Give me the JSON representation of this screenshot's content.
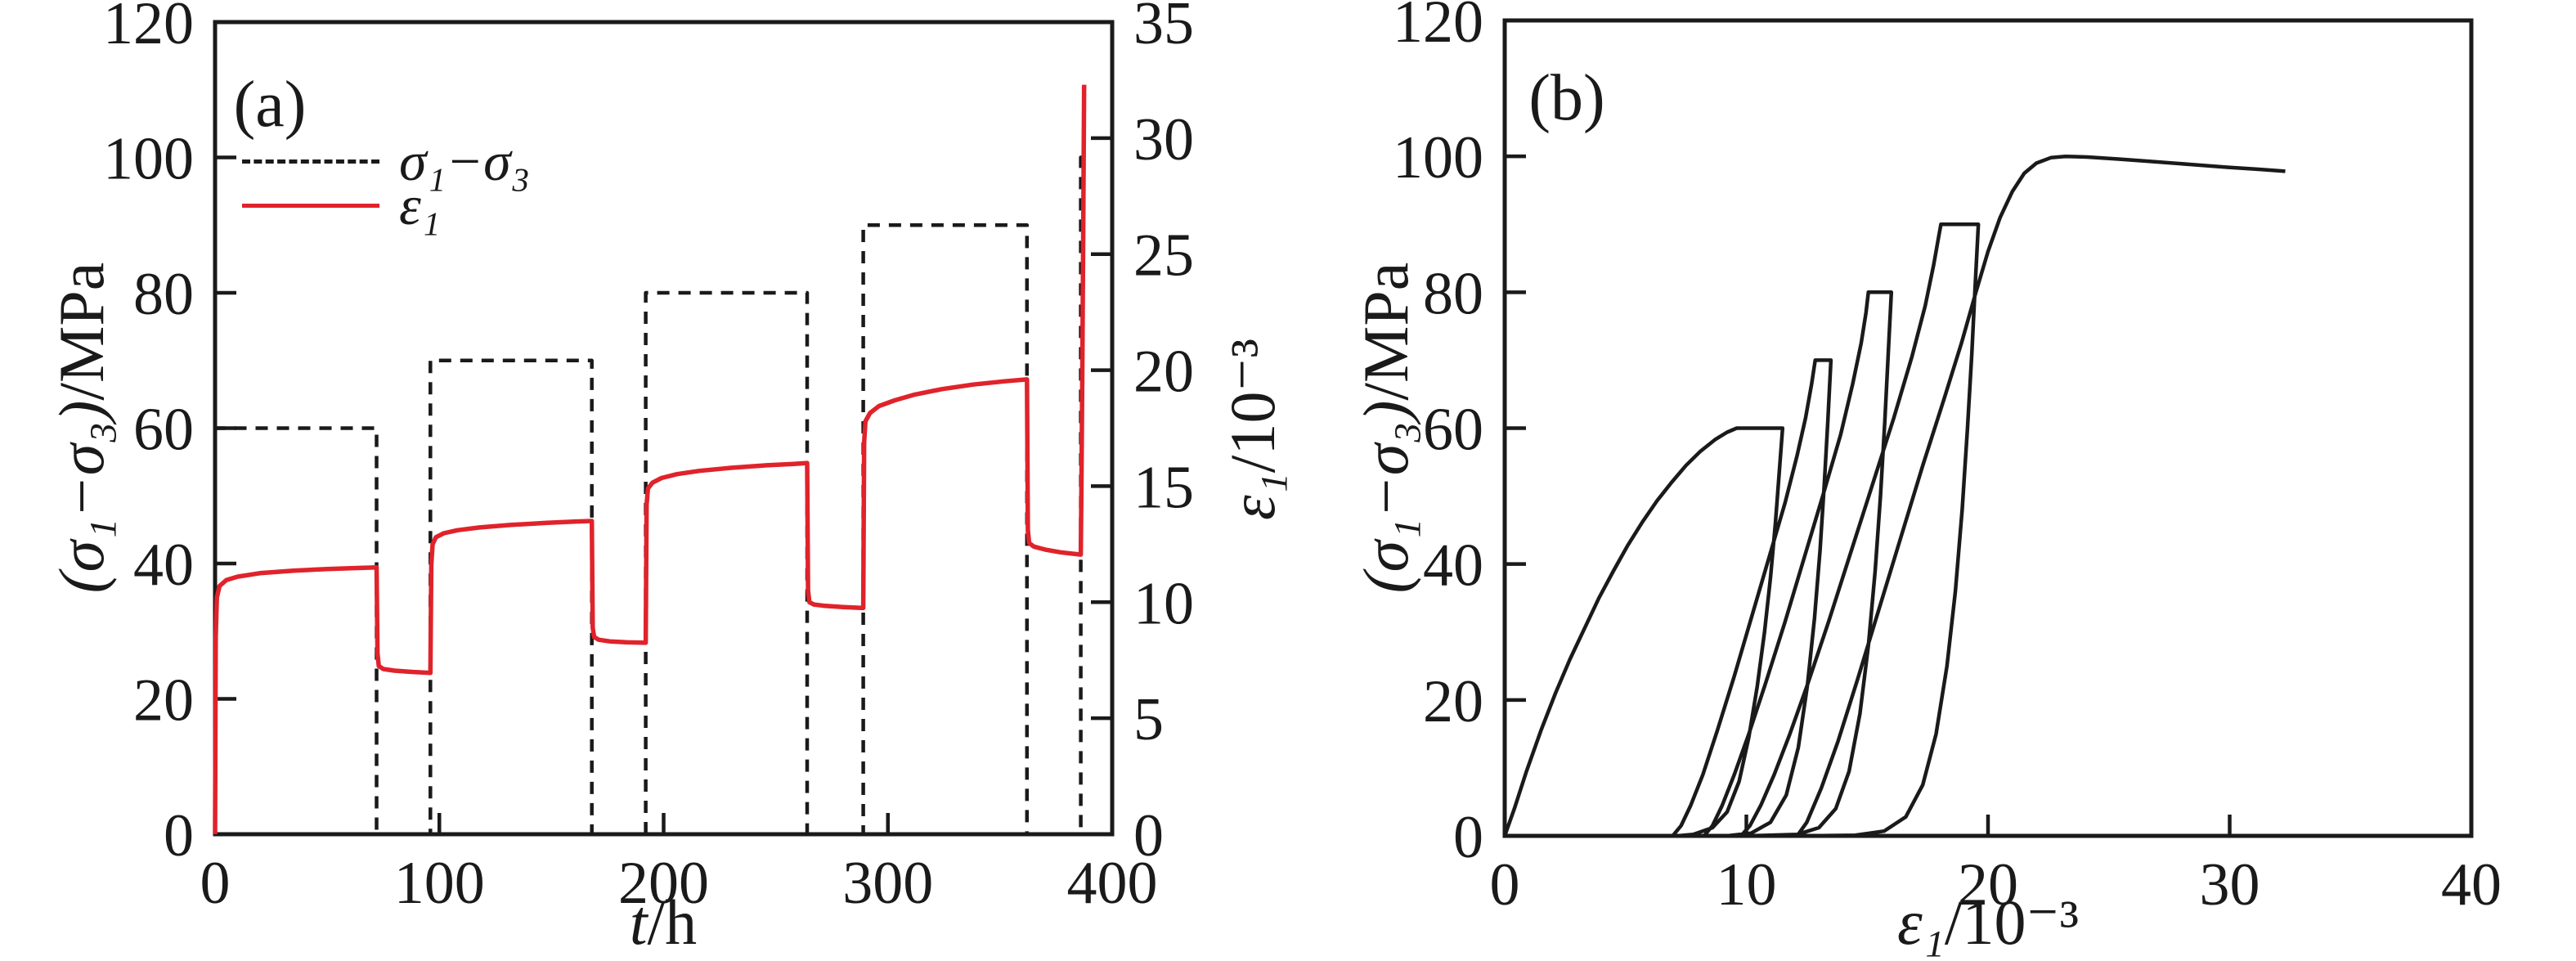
{
  "figure": {
    "background": "#ffffff",
    "axis_color": "#1a1a1a",
    "stress_color": "#1a1a1a",
    "strain_color": "#e0232b"
  },
  "chart_data": [
    {
      "type": "line",
      "id": "a",
      "label": "(a)",
      "x": {
        "label_sym": "t",
        "label_unit": "/h",
        "min": 0,
        "max": 400,
        "ticks": [
          0,
          100,
          200,
          300,
          400
        ]
      },
      "y_left": {
        "label_sym": "(σ₁−σ₃)",
        "label_unit": "/MPa",
        "min": 0,
        "max": 120,
        "ticks": [
          0,
          20,
          40,
          60,
          80,
          100,
          120
        ]
      },
      "y_right": {
        "label_sym": "ε₁",
        "label_unit": "/10⁻³",
        "min": 0,
        "max": 35,
        "ticks": [
          0,
          5,
          10,
          15,
          20,
          25,
          30,
          35
        ]
      },
      "legend": [
        {
          "label": "σ₁−σ₃",
          "line": "dashed",
          "color": "#1a1a1a"
        },
        {
          "label": "ε₁",
          "line": "solid",
          "color": "#e0232b"
        }
      ],
      "series": [
        {
          "name": "deviatoric-stress",
          "yaxis": "left",
          "line": "dashed",
          "color": "#1a1a1a",
          "points": [
            [
              0,
              0
            ],
            [
              0,
              60
            ],
            [
              72,
              60
            ],
            [
              72,
              0
            ],
            [
              96,
              0
            ],
            [
              96,
              70
            ],
            [
              168,
              70
            ],
            [
              168,
              0
            ],
            [
              192,
              0
            ],
            [
              192,
              80
            ],
            [
              264,
              80
            ],
            [
              264,
              0
            ],
            [
              289,
              0
            ],
            [
              289,
              90
            ],
            [
              362,
              90
            ],
            [
              362,
              0
            ],
            [
              386,
              0
            ],
            [
              386,
              100
            ],
            [
              387.5,
              100
            ]
          ]
        },
        {
          "name": "axial-strain",
          "yaxis": "right",
          "line": "solid",
          "color": "#e0232b",
          "points": [
            [
              0,
              0
            ],
            [
              0.3,
              8.5
            ],
            [
              0.8,
              10.2
            ],
            [
              2,
              10.7
            ],
            [
              5,
              10.95
            ],
            [
              10,
              11.1
            ],
            [
              20,
              11.25
            ],
            [
              35,
              11.36
            ],
            [
              50,
              11.43
            ],
            [
              62,
              11.47
            ],
            [
              72,
              11.5
            ],
            [
              72.4,
              7.8
            ],
            [
              73,
              7.25
            ],
            [
              75,
              7.12
            ],
            [
              80,
              7.05
            ],
            [
              87,
              7.0
            ],
            [
              96,
              6.95
            ],
            [
              96.4,
              11.6
            ],
            [
              97,
              12.5
            ],
            [
              98.5,
              12.8
            ],
            [
              102,
              12.97
            ],
            [
              108,
              13.1
            ],
            [
              118,
              13.22
            ],
            [
              132,
              13.33
            ],
            [
              148,
              13.42
            ],
            [
              160,
              13.47
            ],
            [
              168,
              13.5
            ],
            [
              168.4,
              8.9
            ],
            [
              169,
              8.5
            ],
            [
              171,
              8.38
            ],
            [
              176,
              8.31
            ],
            [
              184,
              8.27
            ],
            [
              192,
              8.25
            ],
            [
              192.4,
              14.2
            ],
            [
              193,
              14.9
            ],
            [
              195,
              15.15
            ],
            [
              199,
              15.35
            ],
            [
              206,
              15.52
            ],
            [
              216,
              15.66
            ],
            [
              230,
              15.79
            ],
            [
              246,
              15.9
            ],
            [
              258,
              15.96
            ],
            [
              264,
              16.0
            ],
            [
              264.4,
              10.5
            ],
            [
              265,
              10.0
            ],
            [
              267,
              9.9
            ],
            [
              272,
              9.84
            ],
            [
              280,
              9.79
            ],
            [
              289,
              9.75
            ],
            [
              289.4,
              16.9
            ],
            [
              290,
              17.8
            ],
            [
              292,
              18.15
            ],
            [
              296,
              18.45
            ],
            [
              303,
              18.7
            ],
            [
              312,
              18.95
            ],
            [
              324,
              19.18
            ],
            [
              338,
              19.38
            ],
            [
              352,
              19.52
            ],
            [
              362,
              19.6
            ],
            [
              362.4,
              13.1
            ],
            [
              363,
              12.55
            ],
            [
              365,
              12.4
            ],
            [
              370,
              12.27
            ],
            [
              377,
              12.15
            ],
            [
              386,
              12.05
            ],
            [
              386.3,
              15
            ],
            [
              386.7,
              20
            ],
            [
              387.1,
              26
            ],
            [
              387.5,
              32.3
            ]
          ]
        }
      ]
    },
    {
      "type": "line",
      "id": "b",
      "label": "(b)",
      "x": {
        "label_sym": "ε₁",
        "label_unit": "/10⁻³",
        "min": 0,
        "max": 40,
        "ticks": [
          0,
          10,
          20,
          30,
          40
        ]
      },
      "y_left": {
        "label_sym": "(σ₁−σ₃)",
        "label_unit": "/MPa",
        "min": 0,
        "max": 120,
        "ticks": [
          0,
          20,
          40,
          60,
          80,
          100,
          120
        ]
      },
      "legend": [],
      "series": [
        {
          "name": "stress-strain-curve",
          "yaxis": "left",
          "line": "solid",
          "color": "#1a1a1a",
          "points": [
            [
              0,
              0
            ],
            [
              0.4,
              4
            ],
            [
              0.9,
              9.5
            ],
            [
              1.5,
              15.5
            ],
            [
              2.1,
              21
            ],
            [
              2.7,
              26
            ],
            [
              3.3,
              30.5
            ],
            [
              3.9,
              35
            ],
            [
              4.5,
              39
            ],
            [
              5.1,
              42.8
            ],
            [
              5.7,
              46.2
            ],
            [
              6.3,
              49.3
            ],
            [
              6.9,
              52
            ],
            [
              7.5,
              54.5
            ],
            [
              8.1,
              56.6
            ],
            [
              8.7,
              58.3
            ],
            [
              9.2,
              59.4
            ],
            [
              9.6,
              60
            ],
            [
              11.5,
              60
            ],
            [
              11.35,
              53
            ],
            [
              11.2,
              46
            ],
            [
              11.0,
              38
            ],
            [
              10.75,
              30
            ],
            [
              10.45,
              22
            ],
            [
              10.1,
              14.5
            ],
            [
              9.7,
              8
            ],
            [
              9.2,
              3.5
            ],
            [
              8.6,
              1.2
            ],
            [
              7.8,
              0.2
            ],
            [
              7.15,
              0
            ],
            [
              6.95,
              0
            ],
            [
              7.3,
              1.5
            ],
            [
              7.7,
              4.5
            ],
            [
              8.2,
              9
            ],
            [
              8.8,
              15.5
            ],
            [
              9.5,
              23.5
            ],
            [
              10.2,
              32
            ],
            [
              10.9,
              40.5
            ],
            [
              11.6,
              49
            ],
            [
              12.1,
              56
            ],
            [
              12.45,
              61.5
            ],
            [
              12.7,
              66.5
            ],
            [
              12.85,
              70
            ],
            [
              13.5,
              70
            ],
            [
              13.37,
              61
            ],
            [
              13.23,
              52
            ],
            [
              13.05,
              42
            ],
            [
              12.82,
              32
            ],
            [
              12.52,
              22
            ],
            [
              12.15,
              13
            ],
            [
              11.65,
              6
            ],
            [
              11.0,
              2
            ],
            [
              10.2,
              0.4
            ],
            [
              9.3,
              0.05
            ],
            [
              8.45,
              0
            ],
            [
              8.25,
              0
            ],
            [
              8.6,
              1.5
            ],
            [
              9.0,
              4.5
            ],
            [
              9.5,
              9
            ],
            [
              10.1,
              15
            ],
            [
              10.8,
              22.5
            ],
            [
              11.6,
              31.5
            ],
            [
              12.4,
              41
            ],
            [
              13.2,
              50.5
            ],
            [
              13.9,
              59
            ],
            [
              14.4,
              66.5
            ],
            [
              14.75,
              72.5
            ],
            [
              14.95,
              77
            ],
            [
              15.05,
              80
            ],
            [
              16.0,
              80
            ],
            [
              15.87,
              71
            ],
            [
              15.73,
              61
            ],
            [
              15.55,
              50
            ],
            [
              15.33,
              39
            ],
            [
              15.05,
              28
            ],
            [
              14.7,
              18
            ],
            [
              14.25,
              9.5
            ],
            [
              13.7,
              4
            ],
            [
              13.0,
              1.2
            ],
            [
              12.1,
              0.2
            ],
            [
              10.3,
              0.02
            ],
            [
              9.85,
              0
            ],
            [
              9.78,
              0
            ],
            [
              10.15,
              1.5
            ],
            [
              10.6,
              4.5
            ],
            [
              11.15,
              9
            ],
            [
              11.8,
              15
            ],
            [
              12.55,
              22.5
            ],
            [
              13.4,
              31.5
            ],
            [
              14.3,
              41.5
            ],
            [
              15.2,
              51.5
            ],
            [
              16.1,
              61.5
            ],
            [
              16.85,
              70.5
            ],
            [
              17.4,
              78
            ],
            [
              17.75,
              84
            ],
            [
              17.95,
              88
            ],
            [
              18.05,
              90
            ],
            [
              19.6,
              90
            ],
            [
              19.47,
              81
            ],
            [
              19.33,
              71
            ],
            [
              19.15,
              60
            ],
            [
              18.93,
              48
            ],
            [
              18.65,
              36
            ],
            [
              18.3,
              25
            ],
            [
              17.85,
              15
            ],
            [
              17.3,
              7.5
            ],
            [
              16.6,
              2.8
            ],
            [
              15.7,
              0.7
            ],
            [
              14.5,
              0.1
            ],
            [
              12.4,
              0
            ],
            [
              12.1,
              0
            ],
            [
              12.5,
              2
            ],
            [
              13.1,
              7
            ],
            [
              13.8,
              14
            ],
            [
              14.6,
              23
            ],
            [
              15.5,
              33.5
            ],
            [
              16.4,
              44
            ],
            [
              17.3,
              54.5
            ],
            [
              18.2,
              64.5
            ],
            [
              18.9,
              72.5
            ],
            [
              19.5,
              80
            ],
            [
              20.0,
              86
            ],
            [
              20.5,
              91
            ],
            [
              21.0,
              94.8
            ],
            [
              21.5,
              97.5
            ],
            [
              22.0,
              99
            ],
            [
              22.6,
              99.8
            ],
            [
              23.2,
              100
            ],
            [
              24.1,
              99.9
            ],
            [
              25.4,
              99.6
            ],
            [
              26.9,
              99.2
            ],
            [
              28.4,
              98.8
            ],
            [
              29.9,
              98.4
            ],
            [
              31.2,
              98.1
            ],
            [
              32.3,
              97.8
            ]
          ]
        }
      ]
    }
  ]
}
